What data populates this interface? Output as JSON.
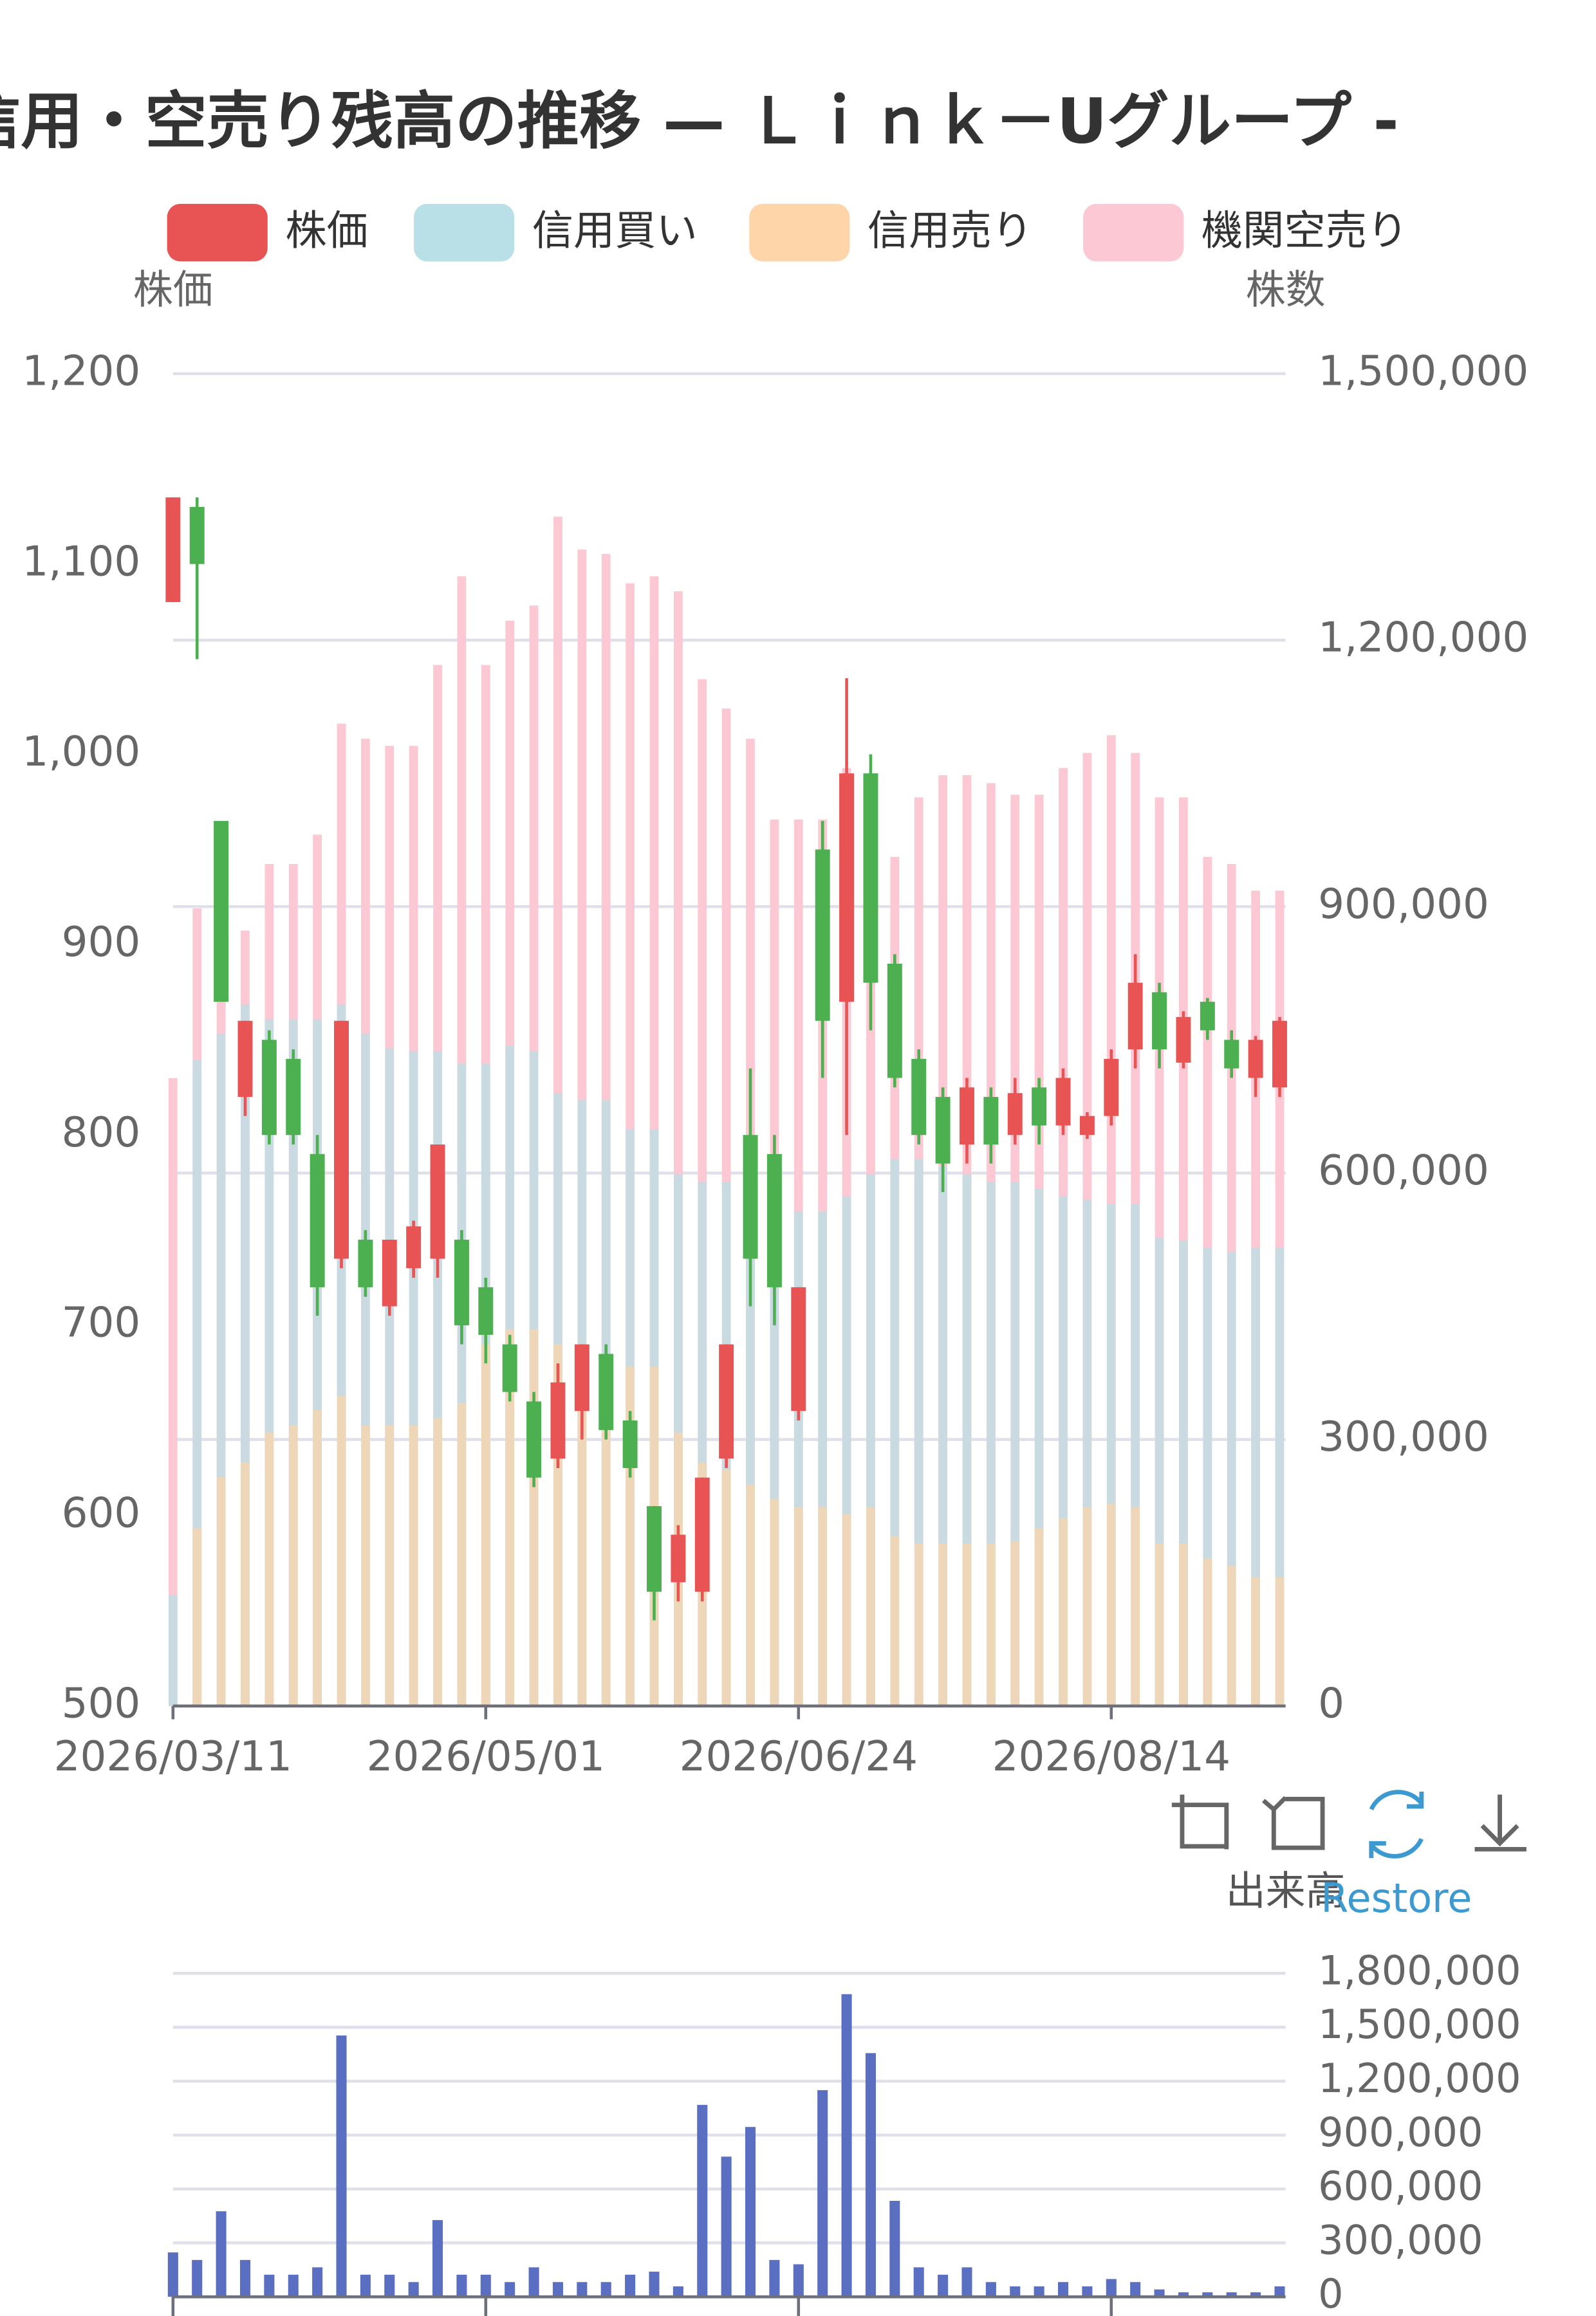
{
  "chart_data": [
    {
      "type": "candlestick",
      "title": "信用・空売り残高の推移 — Ｌｉｎｋ－Uグループ -",
      "ylabel": "株価",
      "y2label": "株数",
      "categories": [
        "2026/03/11",
        null,
        null,
        null,
        null,
        null,
        null,
        null,
        null,
        null,
        null,
        null,
        null,
        "2026/05/01",
        null,
        null,
        null,
        null,
        null,
        null,
        null,
        null,
        null,
        null,
        null,
        null,
        "2026/06/24",
        null,
        null,
        null,
        null,
        null,
        null,
        null,
        null,
        null,
        null,
        null,
        null,
        "2026/08/14",
        null,
        null,
        null,
        null,
        null,
        null,
        null
      ],
      "ylim": [
        500,
        1200
      ],
      "yticks": [
        500,
        600,
        700,
        800,
        900,
        {
          "value": 1000,
          "label": "1,000"
        },
        {
          "value": 1100,
          "label": "1,100"
        },
        {
          "value": 1200,
          "label": "1,200"
        }
      ],
      "y2lim": [
        0,
        1500000
      ],
      "y2ticks": [
        0,
        {
          "value": 300000,
          "label": "300,000"
        },
        {
          "value": 600000,
          "label": "600,000"
        },
        {
          "value": 900000,
          "label": "900,000"
        },
        {
          "value": 1200000,
          "label": "1,200,000"
        },
        {
          "value": 1500000,
          "label": "1,500,000"
        }
      ],
      "grid": true,
      "series": [
        {
          "name": "株価",
          "type": "candlestick",
          "color": "#e85454",
          "down_color": "#4caf50",
          "open": [
            1080,
            1130,
            965,
            820,
            850,
            840,
            790,
            735,
            745,
            710,
            730,
            735,
            745,
            720,
            690,
            660,
            630,
            655,
            685,
            650,
            605,
            565,
            560,
            630,
            800,
            790,
            655,
            950,
            870,
            990,
            890,
            840,
            820,
            795,
            820,
            800,
            825,
            805,
            800,
            810,
            845,
            875,
            838,
            870,
            850,
            830,
            825
          ],
          "close": [
            1135,
            1100,
            870,
            860,
            800,
            800,
            720,
            860,
            720,
            745,
            752,
            795,
            700,
            695,
            665,
            620,
            670,
            690,
            645,
            625,
            560,
            590,
            620,
            690,
            735,
            720,
            720,
            860,
            990,
            880,
            830,
            800,
            785,
            825,
            795,
            822,
            805,
            830,
            810,
            840,
            880,
            845,
            862,
            855,
            835,
            850,
            860
          ],
          "high": [
            1135,
            1135,
            965,
            860,
            855,
            845,
            800,
            860,
            750,
            745,
            755,
            795,
            750,
            725,
            695,
            665,
            680,
            690,
            690,
            655,
            605,
            595,
            620,
            690,
            835,
            800,
            720,
            965,
            1040,
            1000,
            895,
            845,
            825,
            830,
            825,
            830,
            830,
            835,
            812,
            845,
            895,
            880,
            865,
            872,
            855,
            852,
            862
          ],
          "low": [
            1080,
            1050,
            870,
            810,
            795,
            795,
            705,
            730,
            715,
            705,
            725,
            725,
            690,
            680,
            660,
            615,
            625,
            640,
            640,
            620,
            545,
            555,
            555,
            625,
            710,
            700,
            650,
            830,
            800,
            855,
            825,
            795,
            770,
            785,
            785,
            795,
            795,
            800,
            798,
            805,
            835,
            835,
            835,
            850,
            830,
            820,
            820
          ]
        },
        {
          "name": "信用買い",
          "type": "bar",
          "axis": "y2",
          "color": "#b8e0e6",
          "values": [
            125000,
            727000,
            757000,
            790000,
            773000,
            773000,
            773000,
            790000,
            757000,
            740000,
            737000,
            737000,
            723000,
            723000,
            743000,
            737000,
            690000,
            682000,
            682000,
            649000,
            649000,
            599000,
            590000,
            590000,
            590000,
            549000,
            557000,
            557000,
            574000,
            599000,
            616000,
            616000,
            607000,
            599000,
            590000,
            590000,
            582000,
            574000,
            570000,
            565000,
            565000,
            527000,
            524000,
            516000,
            511000,
            516000,
            516000
          ]
        },
        {
          "name": "信用売り",
          "type": "bar",
          "axis": "y2",
          "color": "#fdd5a8",
          "values": [
            0,
            200000,
            258000,
            274000,
            308000,
            316000,
            333000,
            349000,
            316000,
            316000,
            316000,
            324000,
            341000,
            407000,
            424000,
            424000,
            407000,
            399000,
            391000,
            382000,
            382000,
            308000,
            274000,
            266000,
            249000,
            233000,
            224000,
            224000,
            216000,
            224000,
            191000,
            183000,
            183000,
            183000,
            183000,
            186000,
            200000,
            211000,
            224000,
            228000,
            224000,
            183000,
            183000,
            166000,
            158000,
            145000,
            145000
          ]
        },
        {
          "name": "機関空売り",
          "type": "bar",
          "axis": "y2",
          "color": "#fbc8d4",
          "values": [
            707000,
            898000,
            881000,
            873000,
            948000,
            948000,
            981000,
            1106000,
            1089000,
            1081000,
            1081000,
            1172000,
            1272000,
            1172000,
            1222000,
            1239000,
            1339000,
            1302000,
            1297000,
            1264000,
            1272000,
            1255000,
            1156000,
            1123000,
            1089000,
            998000,
            998000,
            998000,
            1056000,
            973000,
            956000,
            1023000,
            1048000,
            1048000,
            1039000,
            1026000,
            1026000,
            1056000,
            1073000,
            1093000,
            1073000,
            1023000,
            1023000,
            956000,
            948000,
            918000,
            918000
          ]
        }
      ]
    },
    {
      "type": "bar",
      "title": "出来高",
      "color": "#5b6fc2",
      "ylim": [
        0,
        1800000
      ],
      "yticks": [
        0,
        {
          "value": 300000,
          "label": "300,000"
        },
        {
          "value": 600000,
          "label": "600,000"
        },
        {
          "value": 900000,
          "label": "900,000"
        },
        {
          "value": 1200000,
          "label": "1,200,000"
        },
        {
          "value": 1500000,
          "label": "1,500,000"
        },
        {
          "value": 1800000,
          "label": "1,800,000"
        }
      ],
      "grid": true,
      "values": [
        247000,
        205000,
        476000,
        205000,
        123000,
        123000,
        164000,
        1454000,
        123000,
        123000,
        82000,
        427000,
        123000,
        123000,
        82000,
        164000,
        82000,
        82000,
        82000,
        123000,
        140000,
        58000,
        1068000,
        780000,
        945000,
        205000,
        181000,
        1150000,
        1684000,
        1356000,
        534000,
        164000,
        123000,
        164000,
        82000,
        58000,
        58000,
        82000,
        58000,
        99000,
        82000,
        41000,
        25000,
        25000,
        25000,
        25000,
        58000
      ]
    }
  ],
  "toolbox": {
    "restore": "Restore"
  }
}
